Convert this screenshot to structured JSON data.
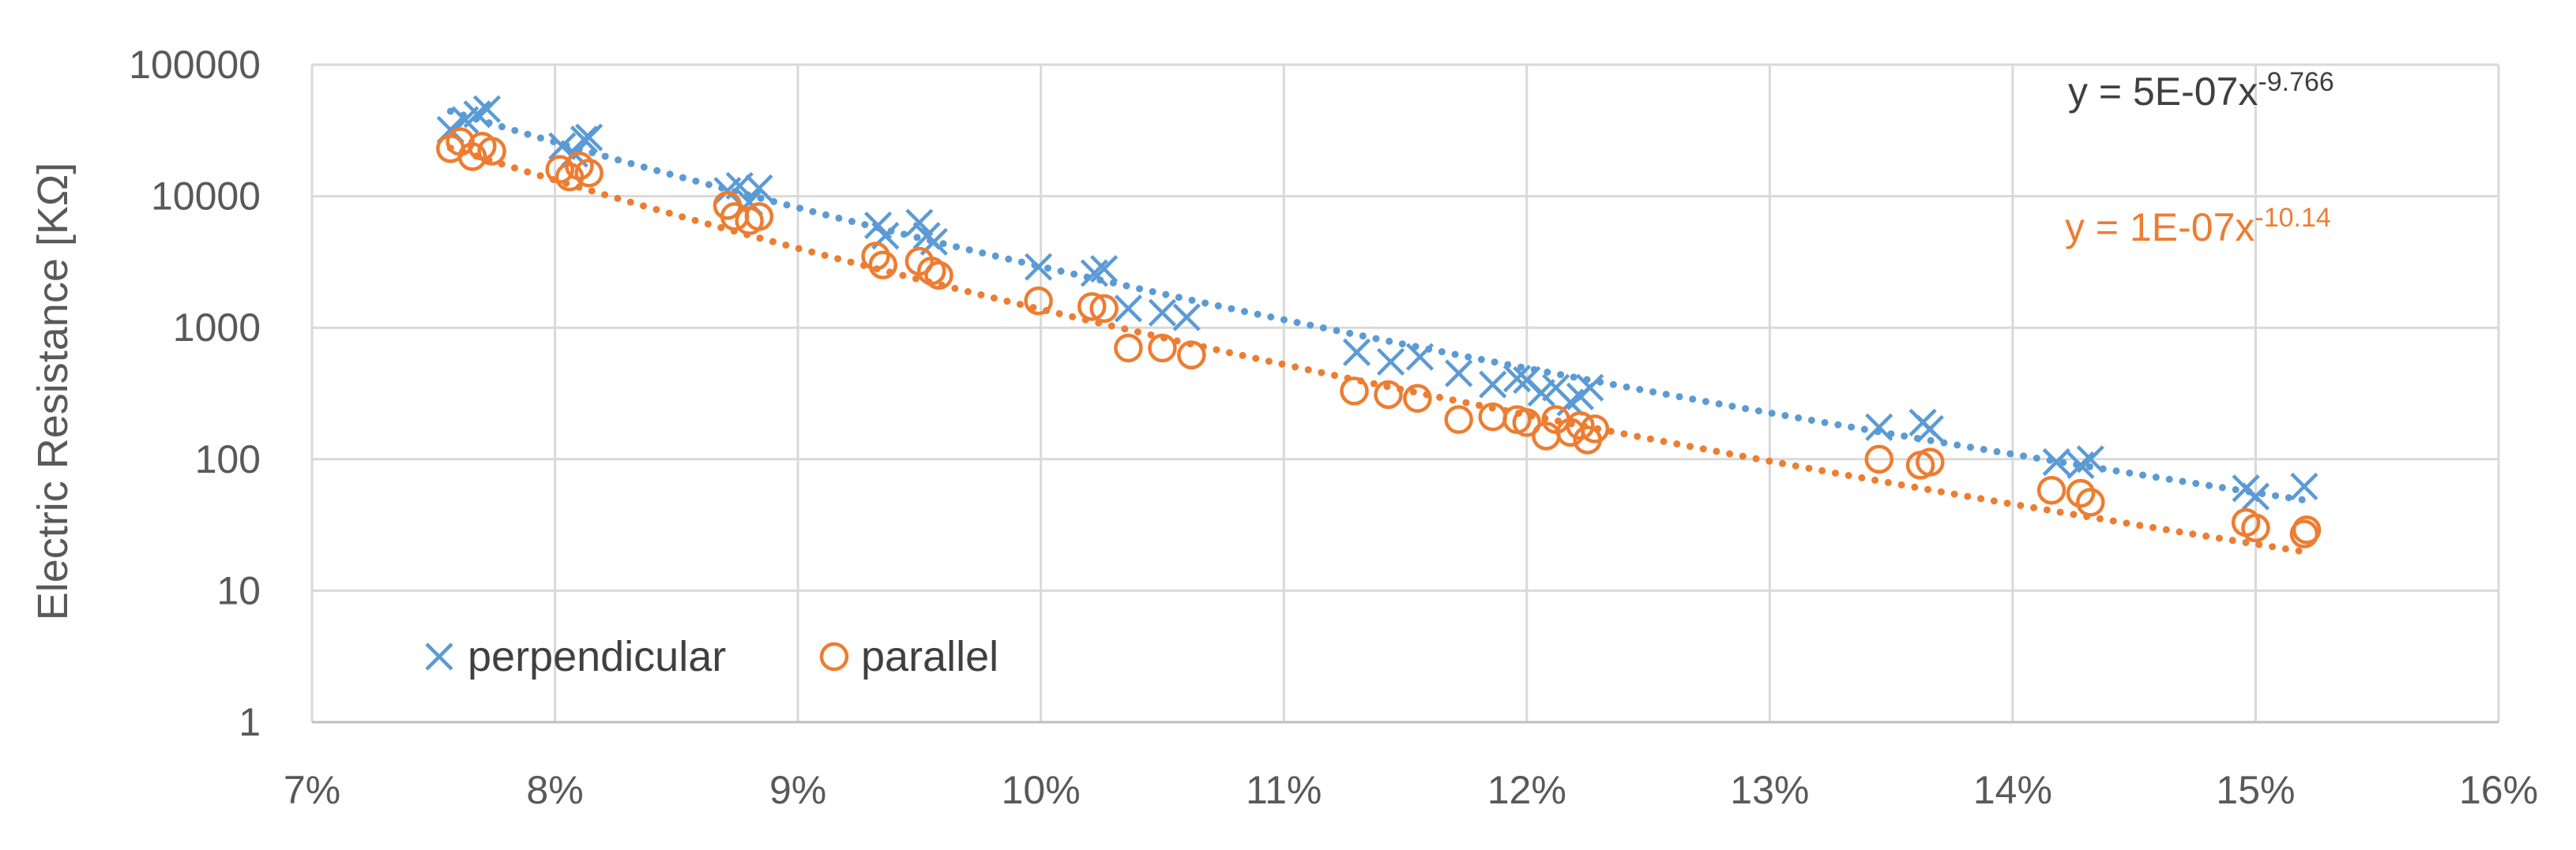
{
  "chart_data": {
    "type": "scatter",
    "title": "",
    "xlabel": "",
    "ylabel": "Electric Resistance [KΩ]",
    "xlim": [
      0.07,
      0.16
    ],
    "ylim": [
      1,
      100000
    ],
    "yscale": "log",
    "grid": true,
    "legend_position": "bottom-left",
    "x_ticks": [
      0.07,
      0.08,
      0.09,
      0.1,
      0.11,
      0.12,
      0.13,
      0.14,
      0.15,
      0.16
    ],
    "x_tick_labels": [
      "7%",
      "8%",
      "9%",
      "10%",
      "11%",
      "12%",
      "13%",
      "14%",
      "15%",
      "16%"
    ],
    "y_ticks": [
      1,
      10,
      100,
      1000,
      10000,
      100000
    ],
    "y_tick_labels": [
      "1",
      "10",
      "100",
      "1000",
      "10000",
      "100000"
    ],
    "series": [
      {
        "name": "perpendicular",
        "marker": "x",
        "color": "#5B9BD5",
        "x": [
          0.0757,
          0.0763,
          0.0768,
          0.0772,
          0.0803,
          0.0808,
          0.0812,
          0.0814,
          0.0871,
          0.0876,
          0.088,
          0.0884,
          0.0933,
          0.0936,
          0.095,
          0.0953,
          0.0956,
          0.0999,
          0.1022,
          0.1026,
          0.1036,
          0.105,
          0.106,
          0.113,
          0.1144,
          0.1156,
          0.1172,
          0.1186,
          0.1196,
          0.12,
          0.1206,
          0.1212,
          0.1218,
          0.1222,
          0.1226,
          0.1345,
          0.1363,
          0.1366,
          0.1418,
          0.1428,
          0.1432,
          0.1496,
          0.15,
          0.152
        ],
        "y": [
          32000,
          38000,
          42000,
          46000,
          24000,
          21000,
          27000,
          28000,
          11000,
          12000,
          9000,
          11500,
          6000,
          5000,
          6300,
          5000,
          4500,
          2900,
          2600,
          2800,
          1400,
          1300,
          1200,
          650,
          550,
          600,
          450,
          370,
          410,
          400,
          320,
          350,
          270,
          300,
          350,
          175,
          190,
          170,
          95,
          90,
          100,
          60,
          52,
          62
        ]
      },
      {
        "name": "parallel",
        "marker": "o",
        "color": "#ED7D31",
        "x": [
          0.0757,
          0.0761,
          0.0766,
          0.077,
          0.0774,
          0.0802,
          0.0806,
          0.081,
          0.0814,
          0.0871,
          0.0874,
          0.088,
          0.0884,
          0.0932,
          0.0935,
          0.095,
          0.0955,
          0.0958,
          0.0999,
          0.1021,
          0.1026,
          0.1036,
          0.105,
          0.1062,
          0.1129,
          0.1143,
          0.1155,
          0.1172,
          0.1186,
          0.1196,
          0.12,
          0.1208,
          0.1212,
          0.1218,
          0.1222,
          0.1225,
          0.1228,
          0.1345,
          0.1362,
          0.1366,
          0.1416,
          0.1428,
          0.1432,
          0.1496,
          0.15,
          0.152,
          0.1521
        ],
        "y": [
          23000,
          26000,
          20000,
          24000,
          22000,
          16000,
          14000,
          17000,
          15000,
          8500,
          7000,
          6500,
          7000,
          3500,
          3000,
          3200,
          2700,
          2500,
          1600,
          1450,
          1400,
          700,
          700,
          620,
          330,
          310,
          290,
          200,
          210,
          200,
          190,
          150,
          200,
          160,
          180,
          140,
          170,
          100,
          90,
          95,
          58,
          55,
          47,
          33,
          30,
          27,
          29
        ]
      }
    ],
    "trendlines": [
      {
        "series": "perpendicular",
        "type": "power",
        "coef": 5e-07,
        "exponent": -9.766,
        "color": "#5B9BD5",
        "label_main": "y = 5E-07x",
        "label_sup": "-9.766",
        "label_color": "#404040"
      },
      {
        "series": "parallel",
        "type": "power",
        "coef": 1e-07,
        "exponent": -10.14,
        "color": "#ED7D31",
        "label_main": "y = 1E-07x",
        "label_sup": "-10.14",
        "label_color": "#ED7D31"
      }
    ],
    "colors": {
      "grid": "#D9D9D9",
      "axis": "#BFBFBF",
      "text": "#595959"
    }
  }
}
